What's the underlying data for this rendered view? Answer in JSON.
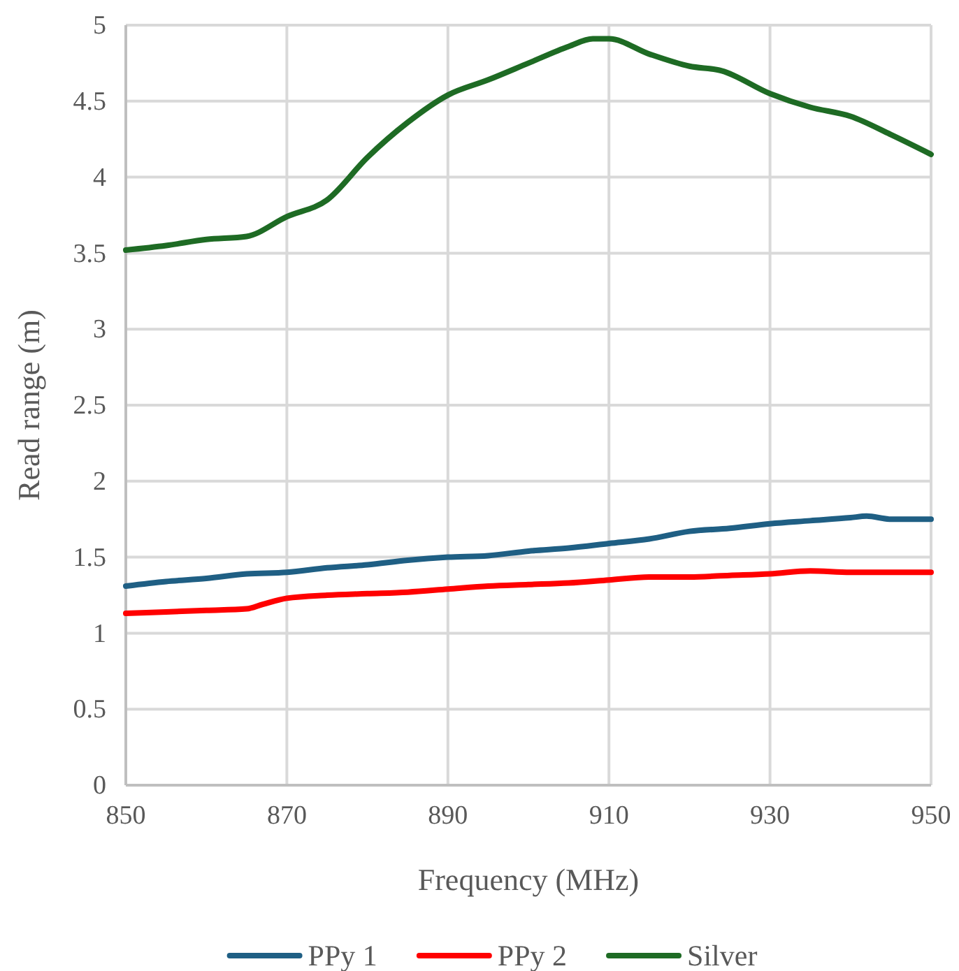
{
  "chart_data": {
    "type": "line",
    "xlabel": "Frequency (MHz)",
    "ylabel": "Read range (m)",
    "xlim": [
      850,
      950
    ],
    "xticks": [
      850,
      870,
      890,
      910,
      930,
      950
    ],
    "ylim": [
      0,
      5
    ],
    "yticks": [
      0,
      0.5,
      1,
      1.5,
      2,
      2.5,
      3,
      3.5,
      4,
      4.5,
      5
    ],
    "grid": true,
    "legend": "bottom",
    "line_style": "solid",
    "series": [
      {
        "name": "PPy 1",
        "color": "#1f5f84",
        "x": [
          850,
          855,
          860,
          865,
          870,
          875,
          880,
          885,
          890,
          895,
          900,
          905,
          910,
          915,
          920,
          925,
          930,
          935,
          940,
          942,
          945,
          950
        ],
        "values": [
          1.31,
          1.34,
          1.36,
          1.39,
          1.4,
          1.43,
          1.45,
          1.48,
          1.5,
          1.51,
          1.54,
          1.56,
          1.59,
          1.62,
          1.67,
          1.69,
          1.72,
          1.74,
          1.76,
          1.77,
          1.75,
          1.75
        ]
      },
      {
        "name": "PPy 2",
        "color": "#ff0000",
        "x": [
          850,
          855,
          860,
          865,
          867,
          870,
          875,
          880,
          885,
          890,
          895,
          900,
          905,
          910,
          915,
          920,
          925,
          930,
          935,
          940,
          945,
          950
        ],
        "values": [
          1.13,
          1.14,
          1.15,
          1.16,
          1.19,
          1.23,
          1.25,
          1.26,
          1.27,
          1.29,
          1.31,
          1.32,
          1.33,
          1.35,
          1.37,
          1.37,
          1.38,
          1.39,
          1.41,
          1.4,
          1.4,
          1.4
        ]
      },
      {
        "name": "Silver",
        "color": "#1e6b24",
        "x": [
          850,
          855,
          860,
          865,
          870,
          875,
          880,
          885,
          890,
          895,
          900,
          905,
          908,
          910,
          915,
          920,
          924,
          930,
          935,
          940,
          945,
          950
        ],
        "values": [
          3.52,
          3.55,
          3.59,
          3.61,
          3.74,
          3.85,
          4.13,
          4.36,
          4.54,
          4.64,
          4.75,
          4.86,
          4.91,
          4.91,
          4.81,
          4.73,
          4.7,
          4.55,
          4.46,
          4.4,
          4.28,
          4.15
        ]
      }
    ]
  }
}
